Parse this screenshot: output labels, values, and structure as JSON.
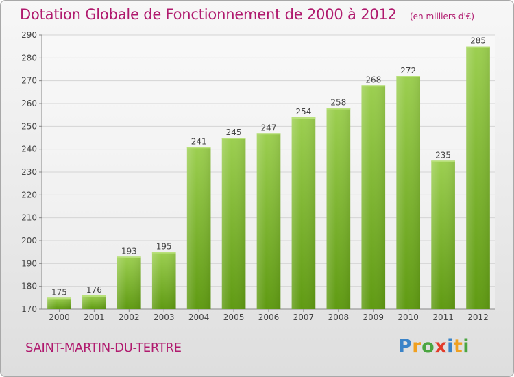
{
  "header": {
    "title": "Dotation Globale de Fonctionnement de 2000 à 2012",
    "subtitle": "(en milliers d'€)"
  },
  "footer": {
    "commune": "SAINT-MARTIN-DU-TERTRE",
    "logo_text": "Proxiti"
  },
  "colors": {
    "title": "#b01a6e",
    "bar_top": "#9ccf50",
    "bar_bottom": "#5f9a12"
  },
  "chart_data": {
    "type": "bar",
    "title": "Dotation Globale de Fonctionnement de 2000 à 2012",
    "subtitle": "(en milliers d'€)",
    "categories": [
      "2000",
      "2001",
      "2002",
      "2003",
      "2004",
      "2005",
      "2006",
      "2007",
      "2008",
      "2009",
      "2010",
      "2011",
      "2012"
    ],
    "values": [
      175,
      176,
      193,
      195,
      241,
      245,
      247,
      254,
      258,
      268,
      272,
      235,
      285
    ],
    "ylim": [
      170,
      290
    ],
    "yticks": [
      170,
      180,
      190,
      200,
      210,
      220,
      230,
      240,
      250,
      260,
      270,
      280,
      290
    ],
    "grid": true,
    "data_labels": true
  }
}
